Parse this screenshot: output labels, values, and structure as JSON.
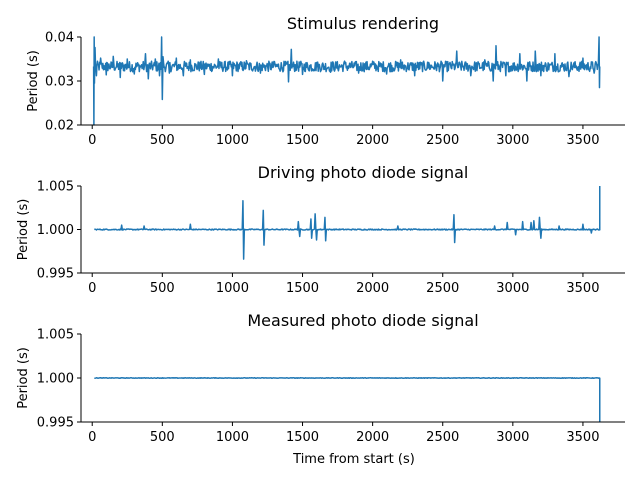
{
  "chart_data": [
    {
      "type": "line",
      "title": "Stimulus rendering",
      "xlabel": "",
      "ylabel": "Period (s)",
      "xlim": [
        -80,
        3800
      ],
      "ylim": [
        0.02,
        0.04
      ],
      "xticks": [
        0,
        500,
        1000,
        1500,
        2000,
        2500,
        3000,
        3500
      ],
      "yticks": [
        "0.02",
        "0.03",
        "0.04"
      ],
      "yticks_values": [
        0.02,
        0.03,
        0.04
      ],
      "grid": false,
      "color": "#1f77b4",
      "series_points": [
        [
          10,
          0.0333
        ],
        [
          12,
          0.02
        ],
        [
          14,
          0.04
        ],
        [
          16,
          0.0295
        ],
        [
          20,
          0.0376
        ],
        [
          30,
          0.0312
        ],
        [
          60,
          0.0352
        ],
        [
          100,
          0.0314
        ],
        [
          150,
          0.0356
        ],
        [
          200,
          0.0308
        ],
        [
          250,
          0.035
        ],
        [
          300,
          0.0316
        ],
        [
          380,
          0.0362
        ],
        [
          400,
          0.0305
        ],
        [
          450,
          0.035
        ],
        [
          480,
          0.0312
        ],
        [
          495,
          0.04
        ],
        [
          500,
          0.0258
        ],
        [
          505,
          0.0355
        ],
        [
          550,
          0.0318
        ],
        [
          600,
          0.0352
        ],
        [
          650,
          0.0312
        ],
        [
          700,
          0.0348
        ],
        [
          800,
          0.0315
        ],
        [
          900,
          0.035
        ],
        [
          1000,
          0.0312
        ],
        [
          1100,
          0.0346
        ],
        [
          1200,
          0.0318
        ],
        [
          1300,
          0.0344
        ],
        [
          1400,
          0.0298
        ],
        [
          1420,
          0.0372
        ],
        [
          1500,
          0.0315
        ],
        [
          1600,
          0.0342
        ],
        [
          1700,
          0.032
        ],
        [
          1800,
          0.0345
        ],
        [
          1900,
          0.0318
        ],
        [
          2000,
          0.0345
        ],
        [
          2100,
          0.0316
        ],
        [
          2200,
          0.0348
        ],
        [
          2300,
          0.0312
        ],
        [
          2400,
          0.0342
        ],
        [
          2500,
          0.03
        ],
        [
          2600,
          0.0368
        ],
        [
          2700,
          0.0312
        ],
        [
          2800,
          0.0348
        ],
        [
          2860,
          0.03
        ],
        [
          2880,
          0.038
        ],
        [
          2950,
          0.0312
        ],
        [
          3050,
          0.0362
        ],
        [
          3100,
          0.03
        ],
        [
          3160,
          0.0368
        ],
        [
          3200,
          0.0312
        ],
        [
          3300,
          0.0362
        ],
        [
          3400,
          0.031
        ],
        [
          3500,
          0.0352
        ],
        [
          3580,
          0.0318
        ],
        [
          3610,
          0.0338
        ],
        [
          3615,
          0.04
        ],
        [
          3618,
          0.0285
        ],
        [
          3620,
          0.0333
        ]
      ],
      "noise_amplitude": 0.0012
    },
    {
      "type": "line",
      "title": "Driving photo diode signal",
      "xlabel": "",
      "ylabel": "Period (s)",
      "xlim": [
        -80,
        3800
      ],
      "ylim": [
        0.995,
        1.005
      ],
      "xticks": [
        0,
        500,
        1000,
        1500,
        2000,
        2500,
        3000,
        3500
      ],
      "yticks": [
        "0.995",
        "1.000",
        "1.005"
      ],
      "yticks_values": [
        0.995,
        1.0,
        1.005
      ],
      "grid": false,
      "color": "#1f77b4",
      "spikes": [
        [
          210,
          0.0005
        ],
        [
          370,
          0.0004
        ],
        [
          700,
          0.0006
        ],
        [
          1075,
          0.0033
        ],
        [
          1078,
          -0.0034
        ],
        [
          1220,
          0.0022
        ],
        [
          1225,
          -0.0018
        ],
        [
          1470,
          0.0009
        ],
        [
          1480,
          -0.0008
        ],
        [
          1560,
          0.0012
        ],
        [
          1565,
          -0.001
        ],
        [
          1590,
          0.0018
        ],
        [
          1600,
          -0.0012
        ],
        [
          1660,
          0.0014
        ],
        [
          1665,
          -0.0013
        ],
        [
          2180,
          0.0004
        ],
        [
          2580,
          0.0017
        ],
        [
          2585,
          -0.0015
        ],
        [
          2870,
          0.0004
        ],
        [
          2960,
          0.0008
        ],
        [
          3020,
          -0.0006
        ],
        [
          3070,
          0.0009
        ],
        [
          3130,
          0.0008
        ],
        [
          3150,
          0.001
        ],
        [
          3190,
          0.0014
        ],
        [
          3200,
          -0.001
        ],
        [
          3330,
          0.0004
        ],
        [
          3500,
          0.0006
        ],
        [
          3560,
          -0.0004
        ]
      ],
      "end_point": [
        3620,
        1.005
      ],
      "noise_amplitude": 6e-05
    },
    {
      "type": "line",
      "title": "Measured photo diode signal",
      "xlabel": "Time from start (s)",
      "ylabel": "Period (s)",
      "xlim": [
        -80,
        3800
      ],
      "ylim": [
        0.995,
        1.005
      ],
      "xticks": [
        0,
        500,
        1000,
        1500,
        2000,
        2500,
        3000,
        3500
      ],
      "yticks": [
        "0.995",
        "1.000",
        "1.005"
      ],
      "yticks_values": [
        0.995,
        1.0,
        1.005
      ],
      "grid": false,
      "color": "#1f77b4",
      "spikes": [],
      "end_point": [
        3620,
        0.995
      ],
      "noise_amplitude": 3e-05
    }
  ]
}
